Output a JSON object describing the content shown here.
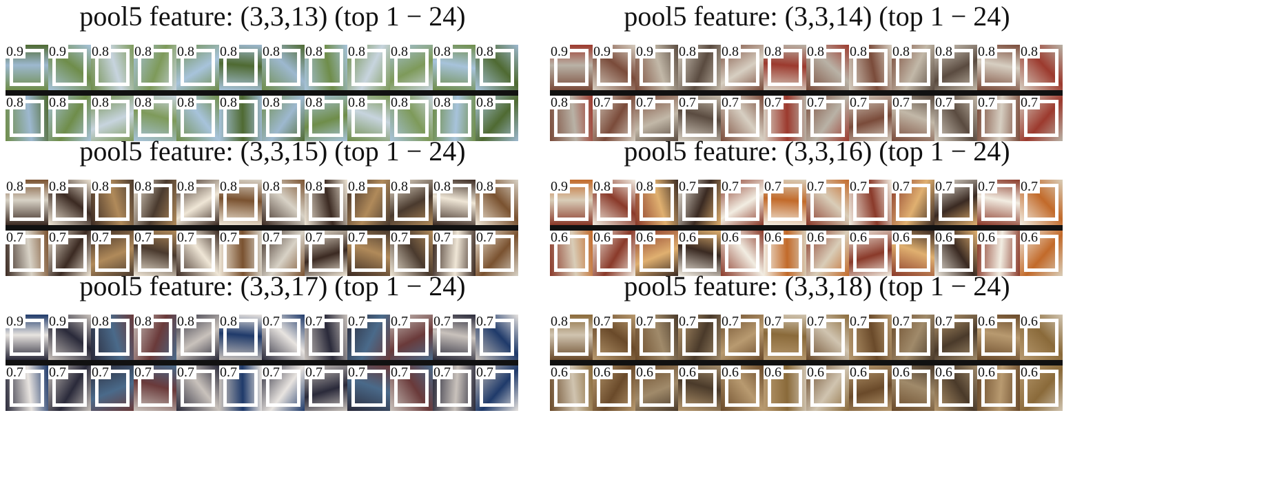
{
  "figure": {
    "panels": [
      {
        "title": "pool5 feature: (3,3,13) (top 1 − 24)",
        "scores": [
          "0.9",
          "0.9",
          "0.8",
          "0.8",
          "0.8",
          "0.8",
          "0.8",
          "0.8",
          "0.8",
          "0.8",
          "0.8",
          "0.8",
          "0.8",
          "0.8",
          "0.8",
          "0.8",
          "0.8",
          "0.8",
          "0.8",
          "0.8",
          "0.8",
          "0.8",
          "0.8",
          "0.8"
        ],
        "palette": [
          "#6f8d4a",
          "#9db8cf",
          "#4f6a32",
          "#a7c3db",
          "#7e9a5a",
          "#c7d4de"
        ]
      },
      {
        "title": "pool5 feature: (3,3,14) (top 1 − 24)",
        "scores": [
          "0.9",
          "0.9",
          "0.9",
          "0.8",
          "0.8",
          "0.8",
          "0.8",
          "0.8",
          "0.8",
          "0.8",
          "0.8",
          "0.8",
          "0.8",
          "0.7",
          "0.7",
          "0.7",
          "0.7",
          "0.7",
          "0.7",
          "0.7",
          "0.7",
          "0.7",
          "0.7",
          "0.7"
        ],
        "palette": [
          "#7a4b3a",
          "#b9b2a6",
          "#9c3a2e",
          "#d7cfc2",
          "#5a4b40",
          "#c2b8a8"
        ]
      },
      {
        "title": "pool5 feature: (3,3,15) (top 1 − 24)",
        "scores": [
          "0.8",
          "0.8",
          "0.8",
          "0.8",
          "0.8",
          "0.8",
          "0.8",
          "0.8",
          "0.8",
          "0.8",
          "0.8",
          "0.8",
          "0.7",
          "0.7",
          "0.7",
          "0.7",
          "0.7",
          "0.7",
          "0.7",
          "0.7",
          "0.7",
          "0.7",
          "0.7",
          "0.7"
        ],
        "palette": [
          "#3b2a22",
          "#d8d2c6",
          "#7a5230",
          "#efe6d6",
          "#4a3a2e",
          "#b08a5a"
        ]
      },
      {
        "title": "pool5 feature: (3,3,16) (top 1 − 24)",
        "scores": [
          "0.9",
          "0.8",
          "0.8",
          "0.7",
          "0.7",
          "0.7",
          "0.7",
          "0.7",
          "0.7",
          "0.7",
          "0.7",
          "0.7",
          "0.6",
          "0.6",
          "0.6",
          "0.6",
          "0.6",
          "0.6",
          "0.6",
          "0.6",
          "0.6",
          "0.6",
          "0.6",
          "0.6"
        ],
        "palette": [
          "#8a3a2a",
          "#d9cdb8",
          "#c26a2a",
          "#f2ede2",
          "#3a2a22",
          "#e0b070"
        ]
      },
      {
        "title": "pool5 feature: (3,3,17) (top 1 − 24)",
        "scores": [
          "0.9",
          "0.9",
          "0.8",
          "0.8",
          "0.8",
          "0.8",
          "0.7",
          "0.7",
          "0.7",
          "0.7",
          "0.7",
          "0.7",
          "0.7",
          "0.7",
          "0.7",
          "0.7",
          "0.7",
          "0.7",
          "0.7",
          "0.7",
          "0.7",
          "0.7",
          "0.7",
          "0.7"
        ],
        "palette": [
          "#2a2a3a",
          "#e8e4e0",
          "#1f3a6a",
          "#c9c2bc",
          "#6a3a3a",
          "#4a6a8a"
        ]
      },
      {
        "title": "pool5 feature: (3,3,18) (top 1 − 24)",
        "scores": [
          "0.8",
          "0.7",
          "0.7",
          "0.7",
          "0.7",
          "0.7",
          "0.7",
          "0.7",
          "0.7",
          "0.7",
          "0.6",
          "0.6",
          "0.6",
          "0.6",
          "0.6",
          "0.6",
          "0.6",
          "0.6",
          "0.6",
          "0.6",
          "0.6",
          "0.6",
          "0.6",
          "0.6"
        ],
        "palette": [
          "#6a4a2a",
          "#d0c4b0",
          "#8a6a3a",
          "#b89a70",
          "#4a3a2a",
          "#a08a6a"
        ]
      }
    ]
  }
}
